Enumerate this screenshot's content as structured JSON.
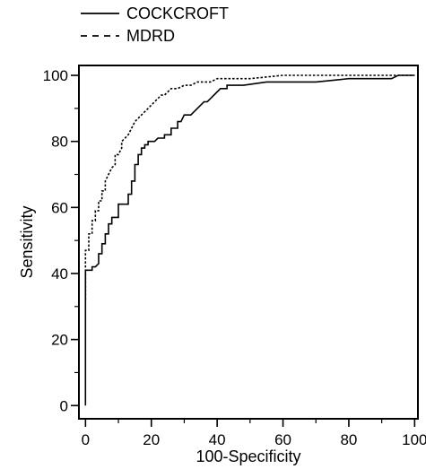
{
  "chart_data": {
    "type": "line",
    "title": "",
    "xlabel": "100-Specificity",
    "ylabel": "Sensitivity",
    "xlim": [
      -2,
      101
    ],
    "ylim": [
      -4,
      103
    ],
    "x_ticks": [
      0,
      20,
      40,
      60,
      80,
      100
    ],
    "y_ticks": [
      0,
      20,
      40,
      60,
      80,
      100
    ],
    "x_tick_labels": [
      "0",
      "20",
      "40",
      "60",
      "80",
      "100"
    ],
    "y_tick_labels": [
      "0",
      "20",
      "40",
      "60",
      "80",
      "100"
    ],
    "grid": false,
    "legend_position": "top-left, above plot",
    "series": [
      {
        "name": "COCKCROFT",
        "line_style": "solid",
        "color": "#000000",
        "x": [
          0,
          0,
          0,
          0,
          2,
          2,
          3,
          4,
          4,
          5,
          5,
          6,
          6,
          7,
          7,
          8,
          8,
          9,
          9,
          10,
          10,
          11,
          12,
          13,
          13,
          14,
          14,
          15,
          15,
          16,
          16,
          17,
          17,
          18,
          18,
          19,
          19,
          20,
          21,
          22,
          22,
          24,
          24,
          26,
          26,
          28,
          28,
          29,
          30,
          31,
          32,
          33,
          33,
          35,
          35,
          36,
          37,
          38,
          38,
          40,
          40,
          41,
          42,
          43,
          43,
          45,
          45,
          48,
          55,
          62,
          70,
          80,
          90,
          93,
          95,
          98,
          100
        ],
        "y": [
          0,
          20,
          35,
          41,
          41,
          42,
          42,
          43,
          46,
          46,
          49,
          49,
          52,
          52,
          55,
          55,
          57,
          57,
          57,
          57,
          61,
          61,
          61,
          61,
          64,
          64,
          68,
          68,
          73,
          73,
          76,
          76,
          78,
          78,
          79,
          79,
          80,
          80,
          80,
          81,
          81,
          81,
          82,
          82,
          84,
          84,
          86,
          86,
          88,
          88,
          88,
          89,
          89,
          91,
          91,
          92,
          92,
          93,
          93,
          95,
          95,
          96,
          96,
          96,
          97,
          97,
          97,
          97,
          98,
          98,
          98,
          99,
          99,
          99,
          100,
          100,
          100
        ]
      },
      {
        "name": "MDRD",
        "line_style": "dashed",
        "color": "#000000",
        "x": [
          0,
          0,
          1,
          1,
          2,
          2,
          3,
          3,
          4,
          4,
          5,
          5,
          6,
          6,
          7,
          8,
          9,
          9,
          10,
          11,
          11,
          12,
          13,
          14,
          15,
          16,
          17,
          18,
          19,
          20,
          21,
          22,
          23,
          24,
          25,
          26,
          27,
          28,
          30,
          32,
          34,
          36,
          38,
          40,
          45,
          50,
          60,
          70,
          80,
          90,
          95,
          100
        ],
        "y": [
          32,
          47,
          47,
          52,
          52,
          56,
          56,
          59,
          59,
          62,
          62,
          65,
          65,
          68,
          70,
          72,
          73,
          76,
          76,
          78,
          80,
          81,
          82,
          84,
          86,
          87,
          88,
          89,
          90,
          91,
          92,
          93,
          94,
          94,
          95,
          96,
          96,
          96,
          97,
          97,
          98,
          98,
          98,
          99,
          99,
          99,
          100,
          100,
          100,
          100,
          100,
          100
        ]
      }
    ]
  }
}
